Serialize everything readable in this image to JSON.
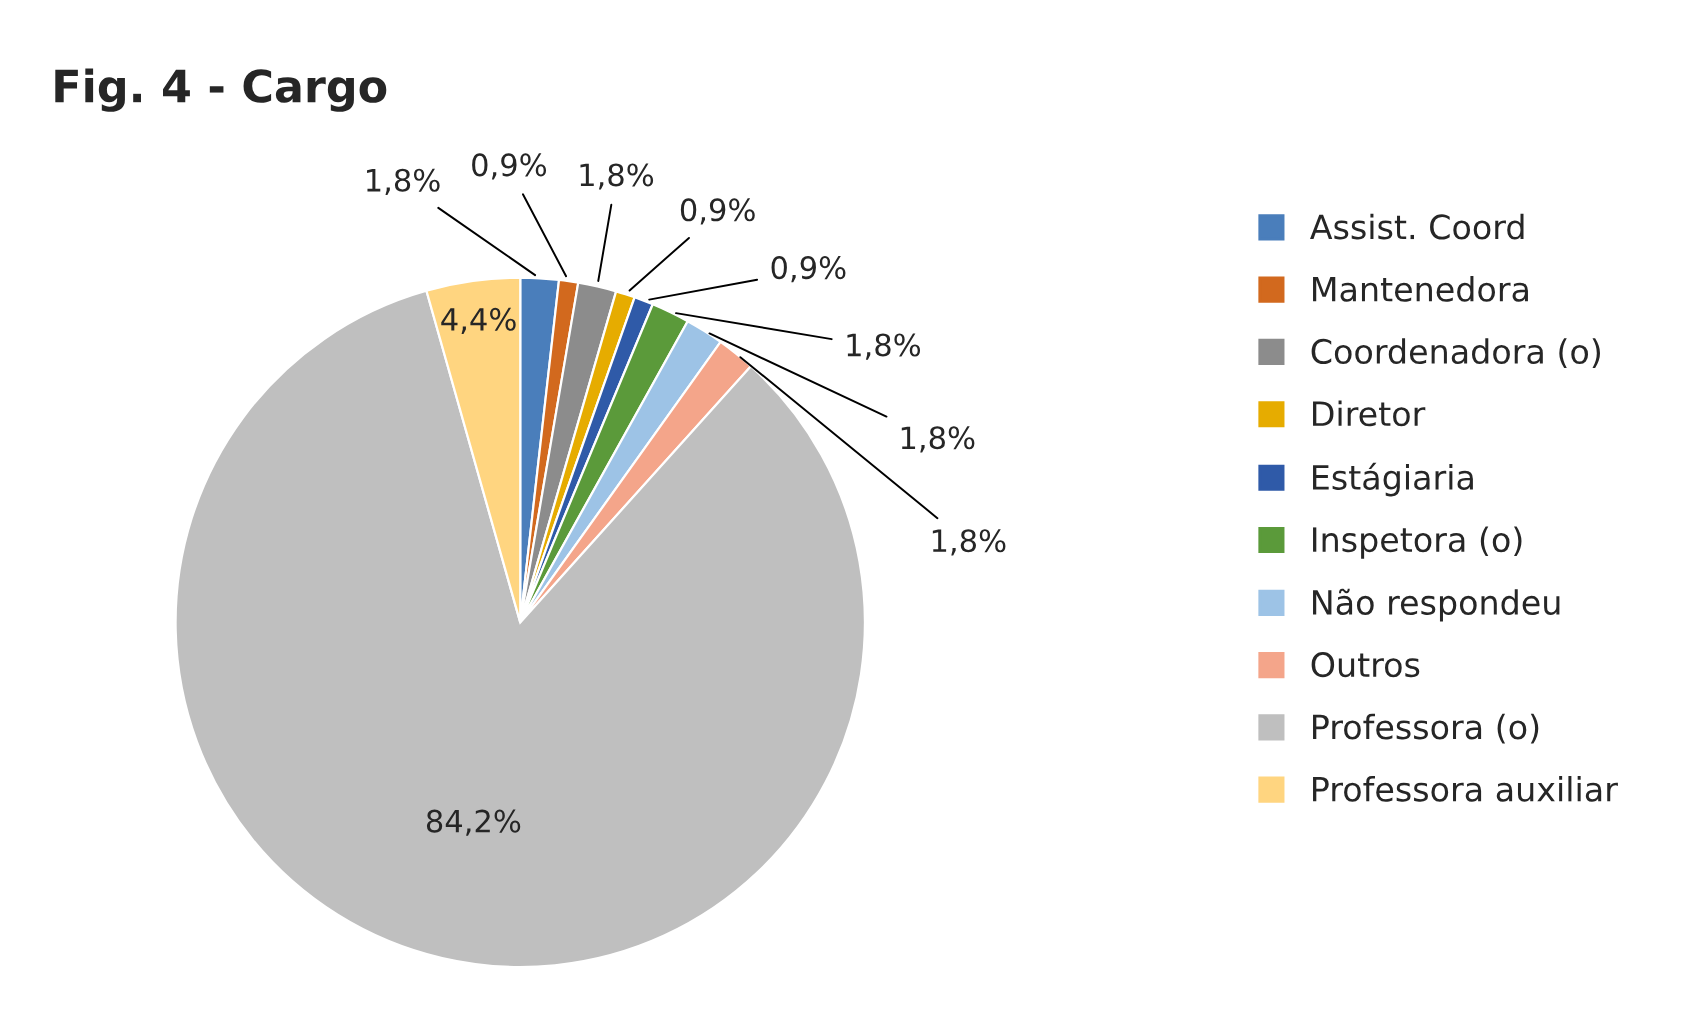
{
  "chart_data": {
    "type": "pie",
    "title": "Fig. 4 - Cargo",
    "categories": [
      "Assist. Coord",
      "Mantenedora",
      "Coordenadora (o)",
      "Diretor",
      "Estágiaria",
      "Inspetora (o)",
      "Não respondeu",
      "Outros",
      "Professora (o)",
      "Professora auxiliar"
    ],
    "values": [
      1.8,
      0.9,
      1.8,
      0.9,
      0.9,
      1.8,
      1.8,
      1.8,
      84.2,
      4.4
    ],
    "value_labels": [
      "1,8%",
      "0,9%",
      "1,8%",
      "0,9%",
      "0,9%",
      "1,8%",
      "1,8%",
      "1,8%",
      "84,2%",
      "4,4%"
    ],
    "colors": [
      "#4a7ebb",
      "#d2691e",
      "#8c8c8c",
      "#e6ac00",
      "#2f5aa8",
      "#5b9a3a",
      "#9dc3e6",
      "#f4a58a",
      "#bfbfbf",
      "#ffd580"
    ],
    "legend": "right"
  }
}
